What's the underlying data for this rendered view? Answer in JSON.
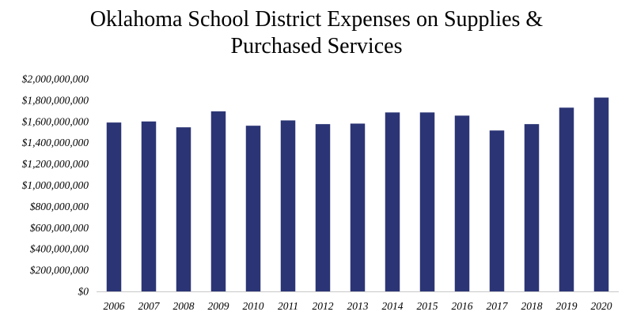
{
  "chart_data": {
    "type": "bar",
    "title_lines": [
      "Oklahoma School District Expenses on Supplies &",
      "Purchased Services"
    ],
    "xlabel": "",
    "ylabel": "",
    "categories": [
      "2006",
      "2007",
      "2008",
      "2009",
      "2010",
      "2011",
      "2012",
      "2013",
      "2014",
      "2015",
      "2016",
      "2017",
      "2018",
      "2019",
      "2020"
    ],
    "values": [
      1590000000,
      1600000000,
      1545000000,
      1695000000,
      1560000000,
      1610000000,
      1575000000,
      1580000000,
      1685000000,
      1685000000,
      1655000000,
      1515000000,
      1575000000,
      1730000000,
      1825000000
    ],
    "ylim": [
      0,
      2000000000
    ],
    "yticks": [
      0,
      200000000,
      400000000,
      600000000,
      800000000,
      1000000000,
      1200000000,
      1400000000,
      1600000000,
      1800000000,
      2000000000
    ],
    "ytick_labels": [
      "$0",
      "$200,000,000",
      "$400,000,000",
      "$600,000,000",
      "$800,000,000",
      "$1,000,000,000",
      "$1,200,000,000",
      "$1,400,000,000",
      "$1,600,000,000",
      "$1,800,000,000",
      "$2,000,000,000"
    ],
    "bar_color": "#2B3575",
    "grid": false,
    "legend": "none"
  }
}
